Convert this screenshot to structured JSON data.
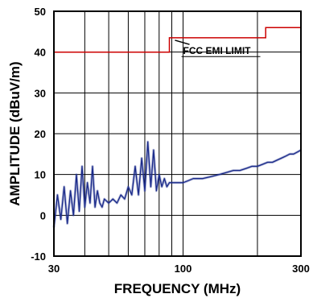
{
  "chart_data": {
    "type": "line",
    "title": "",
    "xlabel": "FREQUENCY (MHz)",
    "ylabel": "AMPLITUDE (dBuV/m)",
    "x_scale": "log",
    "xlim": [
      30,
      300
    ],
    "ylim": [
      -10,
      50
    ],
    "x_ticks": [
      30,
      100,
      300
    ],
    "x_tick_labels": [
      "30",
      "100",
      "300"
    ],
    "y_ticks": [
      -10,
      0,
      10,
      20,
      30,
      40,
      50
    ],
    "y_tick_labels": [
      "-10",
      "0",
      "10",
      "20",
      "30",
      "40",
      "50"
    ],
    "x_gridlines": [
      40,
      50,
      60,
      70,
      80,
      90,
      100,
      200,
      300
    ],
    "y_gridlines": [
      0,
      10,
      20,
      30,
      40,
      50
    ],
    "grid": true,
    "annotation": {
      "text": "FCC EMI LIMIT",
      "target": [
        92,
        43.5
      ],
      "text_position": [
        100,
        39.5
      ]
    },
    "series": [
      {
        "name": "",
        "kind": "limit",
        "color": "#cc0000",
        "x": [
          30,
          88,
          88,
          216,
          216,
          300
        ],
        "y": [
          40,
          40,
          43.5,
          43.5,
          46,
          46
        ]
      },
      {
        "name": "",
        "kind": "measurement",
        "color": "#1a2a8a",
        "x": [
          30,
          31,
          32,
          33,
          34,
          35,
          36,
          37,
          38,
          39,
          40,
          41,
          42,
          43,
          44,
          45,
          46,
          47,
          48,
          50,
          52,
          54,
          56,
          58,
          60,
          62,
          64,
          66,
          68,
          70,
          72,
          74,
          76,
          78,
          80,
          82,
          84,
          86,
          88,
          90,
          95,
          100,
          105,
          110,
          120,
          130,
          140,
          150,
          160,
          170,
          180,
          190,
          200,
          210,
          220,
          230,
          240,
          250,
          260,
          270,
          280,
          290,
          300
        ],
        "y": [
          -3,
          5,
          -1,
          7,
          -2,
          6,
          0,
          10,
          1,
          12,
          2,
          8,
          3,
          12,
          2,
          6,
          3,
          2,
          4,
          3,
          4,
          3,
          5,
          4,
          7,
          5,
          12,
          5,
          14,
          6,
          18,
          7,
          16,
          6,
          10,
          7,
          9,
          7,
          8,
          8,
          8,
          8,
          8.5,
          9,
          9,
          9.5,
          10,
          10.5,
          11,
          11,
          11.5,
          12,
          12,
          12.5,
          13,
          13,
          13.5,
          14,
          14.5,
          15,
          15,
          15.5,
          16
        ]
      }
    ]
  }
}
